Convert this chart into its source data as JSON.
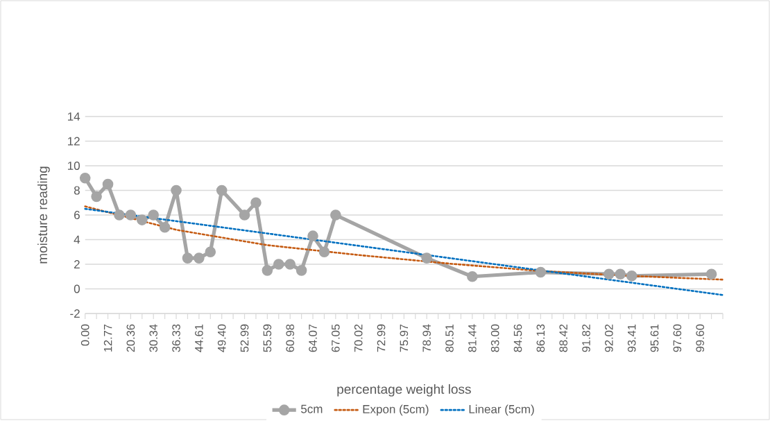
{
  "chart_data": {
    "type": "line",
    "xlabel": "percentage weight loss",
    "ylabel": "moisture reading",
    "categories": [
      "0.00",
      null,
      "12.77",
      null,
      "20.36",
      null,
      "30.34",
      null,
      "36.33",
      null,
      "44.61",
      null,
      "49.40",
      null,
      "52.99",
      null,
      "55.59",
      null,
      "60.98",
      null,
      "64.07",
      null,
      "67.05",
      null,
      "70.02",
      null,
      "72.99",
      null,
      "75.97",
      null,
      "78.94",
      null,
      "80.51",
      null,
      "81.44",
      null,
      "83.00",
      null,
      "84.56",
      null,
      "86.13",
      null,
      "88.42",
      null,
      "91.82",
      null,
      "92.02",
      null,
      "93.41",
      null,
      "95.61",
      null,
      "97.60",
      null,
      "99.60",
      null,
      null
    ],
    "series": [
      {
        "name": "5cm",
        "color": "#a5a5a5",
        "marker": "circle",
        "line_style": "solid",
        "values": [
          9,
          7.5,
          8.5,
          6,
          6,
          5.6,
          6,
          5,
          8,
          2.5,
          2.5,
          3,
          8,
          null,
          6,
          7,
          1.5,
          2,
          2,
          1.5,
          4.3,
          3,
          6,
          null,
          null,
          null,
          null,
          null,
          null,
          null,
          2.5,
          null,
          null,
          null,
          1.0,
          null,
          null,
          null,
          null,
          null,
          1.35,
          null,
          null,
          null,
          null,
          null,
          1.2,
          1.2,
          1.05,
          null,
          null,
          null,
          null,
          null,
          null,
          1.2,
          null
        ]
      },
      {
        "name": "Expon (5cm)",
        "color": "#c55a11",
        "marker": "none",
        "line_style": "dotted",
        "values": [
          6.7,
          null,
          null,
          null,
          null,
          null,
          null,
          null,
          4.8,
          null,
          null,
          null,
          null,
          null,
          null,
          null,
          3.55,
          null,
          null,
          null,
          null,
          null,
          null,
          null,
          2.75,
          null,
          null,
          null,
          null,
          null,
          null,
          null,
          2.05,
          null,
          null,
          null,
          null,
          null,
          null,
          null,
          1.45,
          null,
          null,
          null,
          null,
          null,
          null,
          null,
          1.05,
          null,
          null,
          null,
          null,
          null,
          null,
          null,
          0.75
        ]
      },
      {
        "name": "Linear (5cm)",
        "color": "#0070c0",
        "marker": "none",
        "line_style": "dotted",
        "values": [
          6.5,
          null,
          null,
          null,
          null,
          null,
          null,
          null,
          null,
          null,
          null,
          null,
          null,
          null,
          null,
          null,
          null,
          null,
          null,
          null,
          null,
          null,
          null,
          null,
          null,
          null,
          null,
          null,
          null,
          null,
          null,
          null,
          null,
          null,
          null,
          null,
          null,
          null,
          null,
          null,
          null,
          null,
          null,
          null,
          null,
          null,
          null,
          null,
          null,
          null,
          null,
          null,
          null,
          null,
          null,
          null,
          -0.5
        ]
      }
    ],
    "ylim": [
      -2,
      14
    ],
    "yticks": [
      -2,
      0,
      2,
      4,
      6,
      8,
      10,
      12,
      14
    ],
    "grid": "y",
    "legend": "bottom"
  }
}
